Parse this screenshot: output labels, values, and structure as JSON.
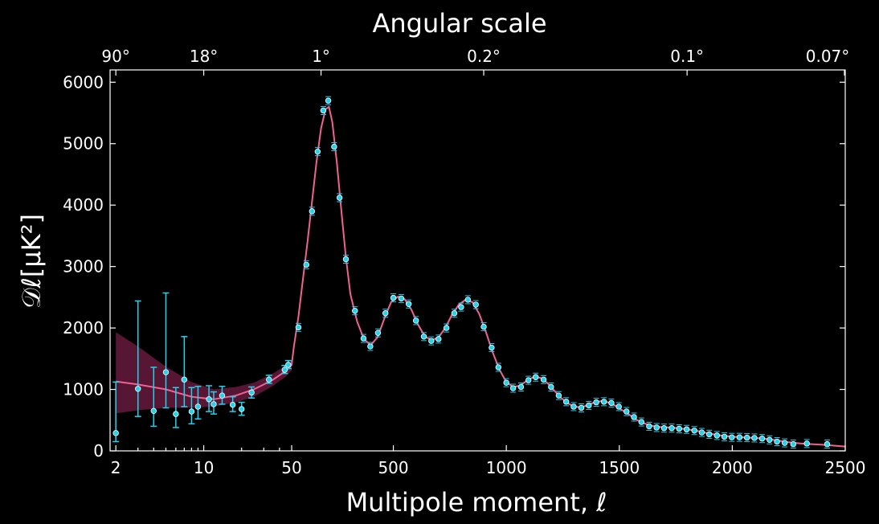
{
  "chart_data": {
    "type": "scatter",
    "title": "Angular scale",
    "xlabel": "Multipole moment, ℓ",
    "ylabel": "𝒟ℓ[μK²]",
    "ylim": [
      0,
      6200
    ],
    "x_scale": "log-then-linear (log for ℓ < 50, linear above)",
    "x_ticks": [
      {
        "value": 2,
        "label": "2"
      },
      {
        "value": 10,
        "label": "10"
      },
      {
        "value": 50,
        "label": "50"
      },
      {
        "value": 500,
        "label": "500"
      },
      {
        "value": 1000,
        "label": "1000"
      },
      {
        "value": 1500,
        "label": "1500"
      },
      {
        "value": 2000,
        "label": "2000"
      },
      {
        "value": 2500,
        "label": "2500"
      }
    ],
    "y_ticks": [
      0,
      1000,
      2000,
      3000,
      4000,
      5000,
      6000
    ],
    "y_tick_labels": [
      "0",
      "1000",
      "2000",
      "3000",
      "4000",
      "5000",
      "6000"
    ],
    "top_ticks": [
      {
        "ell": 2,
        "label": "90°"
      },
      {
        "ell": 10,
        "label": "18°"
      },
      {
        "ell": 180,
        "label": "1°"
      },
      {
        "ell": 900,
        "label": "0.2°"
      },
      {
        "ell": 1800,
        "label": "0.1°"
      },
      {
        "ell": 2571,
        "label": "0.07°"
      }
    ],
    "colors": {
      "background": "#000000",
      "points": "#22d3ee",
      "model": "#f06292",
      "band": "#7a1f4a",
      "axes": "#ffffff"
    },
    "low_ell_points": [
      {
        "x": 2,
        "y": 290,
        "lo": 150,
        "hi": 1120
      },
      {
        "x": 3,
        "y": 1010,
        "lo": 560,
        "hi": 2440
      },
      {
        "x": 4,
        "y": 650,
        "lo": 400,
        "hi": 1360
      },
      {
        "x": 5,
        "y": 1280,
        "lo": 700,
        "hi": 2570
      },
      {
        "x": 6,
        "y": 600,
        "lo": 380,
        "hi": 1030
      },
      {
        "x": 7,
        "y": 1160,
        "lo": 720,
        "hi": 1860
      },
      {
        "x": 8,
        "y": 640,
        "lo": 440,
        "hi": 1030
      },
      {
        "x": 9,
        "y": 720,
        "lo": 520,
        "hi": 1050
      },
      {
        "x": 11,
        "y": 840,
        "lo": 640,
        "hi": 1060
      },
      {
        "x": 12,
        "y": 760,
        "lo": 600,
        "hi": 960
      },
      {
        "x": 14,
        "y": 900,
        "lo": 760,
        "hi": 1050
      },
      {
        "x": 17,
        "y": 750,
        "lo": 640,
        "hi": 880
      },
      {
        "x": 20,
        "y": 680,
        "lo": 580,
        "hi": 790
      },
      {
        "x": 24,
        "y": 950,
        "lo": 860,
        "hi": 1040
      },
      {
        "x": 33,
        "y": 1160,
        "lo": 1100,
        "hi": 1230
      },
      {
        "x": 44,
        "y": 1320,
        "lo": 1260,
        "hi": 1390
      },
      {
        "x": 47,
        "y": 1400,
        "lo": 1340,
        "hi": 1470
      }
    ],
    "high_ell_points": [
      {
        "x": 80,
        "y": 2010
      },
      {
        "x": 115,
        "y": 3030
      },
      {
        "x": 140,
        "y": 3900
      },
      {
        "x": 165,
        "y": 4870
      },
      {
        "x": 190,
        "y": 5540
      },
      {
        "x": 212,
        "y": 5700
      },
      {
        "x": 238,
        "y": 4950
      },
      {
        "x": 262,
        "y": 4120
      },
      {
        "x": 290,
        "y": 3120
      },
      {
        "x": 330,
        "y": 2280
      },
      {
        "x": 368,
        "y": 1830
      },
      {
        "x": 398,
        "y": 1700
      },
      {
        "x": 432,
        "y": 1920
      },
      {
        "x": 465,
        "y": 2240
      },
      {
        "x": 500,
        "y": 2490
      },
      {
        "x": 535,
        "y": 2480
      },
      {
        "x": 568,
        "y": 2390
      },
      {
        "x": 600,
        "y": 2120
      },
      {
        "x": 635,
        "y": 1860
      },
      {
        "x": 668,
        "y": 1790
      },
      {
        "x": 700,
        "y": 1820
      },
      {
        "x": 735,
        "y": 2000
      },
      {
        "x": 770,
        "y": 2240
      },
      {
        "x": 800,
        "y": 2340
      },
      {
        "x": 830,
        "y": 2460
      },
      {
        "x": 865,
        "y": 2380
      },
      {
        "x": 900,
        "y": 2020
      },
      {
        "x": 935,
        "y": 1680
      },
      {
        "x": 965,
        "y": 1360
      },
      {
        "x": 1000,
        "y": 1110
      },
      {
        "x": 1030,
        "y": 1020
      },
      {
        "x": 1065,
        "y": 1040
      },
      {
        "x": 1098,
        "y": 1150
      },
      {
        "x": 1130,
        "y": 1200
      },
      {
        "x": 1165,
        "y": 1160
      },
      {
        "x": 1198,
        "y": 1040
      },
      {
        "x": 1232,
        "y": 900
      },
      {
        "x": 1265,
        "y": 800
      },
      {
        "x": 1298,
        "y": 720
      },
      {
        "x": 1332,
        "y": 700
      },
      {
        "x": 1365,
        "y": 740
      },
      {
        "x": 1398,
        "y": 790
      },
      {
        "x": 1432,
        "y": 800
      },
      {
        "x": 1465,
        "y": 780
      },
      {
        "x": 1498,
        "y": 720
      },
      {
        "x": 1532,
        "y": 640
      },
      {
        "x": 1565,
        "y": 550
      },
      {
        "x": 1598,
        "y": 470
      },
      {
        "x": 1632,
        "y": 400
      },
      {
        "x": 1665,
        "y": 380
      },
      {
        "x": 1698,
        "y": 370
      },
      {
        "x": 1732,
        "y": 370
      },
      {
        "x": 1765,
        "y": 360
      },
      {
        "x": 1798,
        "y": 350
      },
      {
        "x": 1832,
        "y": 330
      },
      {
        "x": 1865,
        "y": 300
      },
      {
        "x": 1898,
        "y": 270
      },
      {
        "x": 1932,
        "y": 250
      },
      {
        "x": 1965,
        "y": 230
      },
      {
        "x": 1998,
        "y": 220
      },
      {
        "x": 2032,
        "y": 220
      },
      {
        "x": 2065,
        "y": 215
      },
      {
        "x": 2098,
        "y": 210
      },
      {
        "x": 2132,
        "y": 200
      },
      {
        "x": 2165,
        "y": 180
      },
      {
        "x": 2198,
        "y": 150
      },
      {
        "x": 2232,
        "y": 130
      },
      {
        "x": 2270,
        "y": 110
      },
      {
        "x": 2330,
        "y": 120
      },
      {
        "x": 2420,
        "y": 110
      }
    ],
    "model_curve": [
      [
        2,
        1130
      ],
      [
        3,
        1080
      ],
      [
        5,
        1000
      ],
      [
        8,
        880
      ],
      [
        12,
        840
      ],
      [
        18,
        900
      ],
      [
        25,
        1000
      ],
      [
        35,
        1150
      ],
      [
        45,
        1300
      ],
      [
        50,
        1400
      ],
      [
        60,
        1700
      ],
      [
        80,
        2180
      ],
      [
        100,
        2800
      ],
      [
        120,
        3400
      ],
      [
        140,
        4050
      ],
      [
        160,
        4700
      ],
      [
        180,
        5250
      ],
      [
        200,
        5560
      ],
      [
        215,
        5600
      ],
      [
        230,
        5350
      ],
      [
        250,
        4700
      ],
      [
        270,
        3900
      ],
      [
        290,
        3150
      ],
      [
        310,
        2550
      ],
      [
        340,
        2100
      ],
      [
        370,
        1820
      ],
      [
        400,
        1720
      ],
      [
        430,
        1850
      ],
      [
        460,
        2150
      ],
      [
        490,
        2420
      ],
      [
        520,
        2510
      ],
      [
        550,
        2470
      ],
      [
        580,
        2300
      ],
      [
        610,
        2050
      ],
      [
        640,
        1860
      ],
      [
        670,
        1800
      ],
      [
        700,
        1850
      ],
      [
        730,
        2000
      ],
      [
        760,
        2220
      ],
      [
        790,
        2380
      ],
      [
        820,
        2460
      ],
      [
        850,
        2420
      ],
      [
        880,
        2230
      ],
      [
        910,
        1930
      ],
      [
        940,
        1600
      ],
      [
        970,
        1320
      ],
      [
        1000,
        1120
      ],
      [
        1030,
        1040
      ],
      [
        1060,
        1060
      ],
      [
        1090,
        1140
      ],
      [
        1120,
        1200
      ],
      [
        1150,
        1190
      ],
      [
        1180,
        1110
      ],
      [
        1210,
        990
      ],
      [
        1240,
        870
      ],
      [
        1270,
        780
      ],
      [
        1300,
        720
      ],
      [
        1330,
        710
      ],
      [
        1360,
        740
      ],
      [
        1390,
        790
      ],
      [
        1420,
        810
      ],
      [
        1450,
        790
      ],
      [
        1480,
        740
      ],
      [
        1510,
        670
      ],
      [
        1540,
        600
      ],
      [
        1570,
        520
      ],
      [
        1600,
        460
      ],
      [
        1640,
        410
      ],
      [
        1680,
        390
      ],
      [
        1720,
        380
      ],
      [
        1760,
        370
      ],
      [
        1800,
        350
      ],
      [
        1850,
        320
      ],
      [
        1900,
        280
      ],
      [
        1950,
        250
      ],
      [
        2000,
        230
      ],
      [
        2050,
        220
      ],
      [
        2100,
        210
      ],
      [
        2150,
        195
      ],
      [
        2200,
        170
      ],
      [
        2250,
        140
      ],
      [
        2300,
        120
      ],
      [
        2350,
        110
      ],
      [
        2400,
        100
      ],
      [
        2450,
        85
      ],
      [
        2500,
        70
      ]
    ],
    "cosmic_variance_band": [
      [
        2,
        610,
        1930
      ],
      [
        3,
        660,
        1700
      ],
      [
        5,
        700,
        1370
      ],
      [
        8,
        700,
        1120
      ],
      [
        12,
        720,
        1000
      ],
      [
        18,
        790,
        1040
      ],
      [
        25,
        880,
        1110
      ],
      [
        35,
        1050,
        1250
      ],
      [
        45,
        1210,
        1390
      ],
      [
        50,
        1310,
        1480
      ]
    ]
  }
}
